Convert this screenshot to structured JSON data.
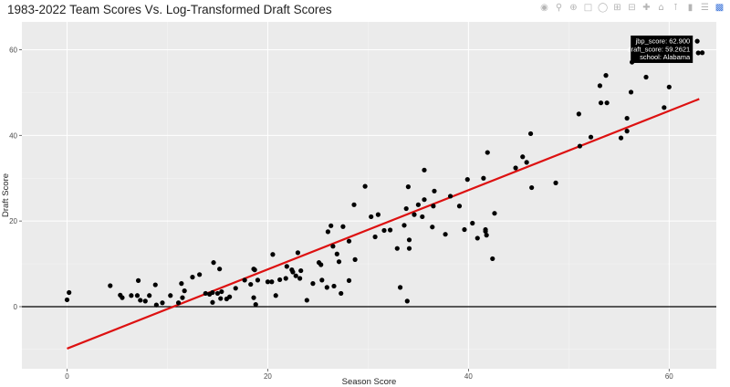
{
  "title": "1983-2022 Team Scores Vs. Log-Transformed Draft Scores",
  "modebar": {
    "icons": [
      "camera-icon",
      "zoom-icon",
      "plus-box-icon",
      "select-box-icon",
      "lasso-icon",
      "zoom-in-icon",
      "zoom-out-icon",
      "autoscale-icon",
      "home-icon",
      "spike-lines-icon",
      "hover-closest-icon",
      "hover-compare-icon",
      "plotly-logo-icon"
    ]
  },
  "colors": {
    "panel_bg": "#ebebeb",
    "grid": "#ffffff",
    "points": "#000000",
    "fit_line": "#dd1111",
    "hline": "#000000",
    "tooltip_bg": "#000000"
  },
  "tooltip": {
    "lines": [
      "jbp_score: 62.900",
      "draft_score: 59.2621",
      "school: Alabama"
    ],
    "point": [
      62.9,
      59.26
    ]
  },
  "chart_data": {
    "type": "scatter",
    "title": "1983-2022 Team Scores Vs. Log-Transformed Draft Scores",
    "xlabel": "Season Score",
    "ylabel": "Draft Score",
    "xlim": [
      -4.5,
      64.7
    ],
    "ylim": [
      -14.5,
      66.5
    ],
    "x_ticks": [
      0,
      20,
      40,
      60
    ],
    "y_ticks": [
      0,
      20,
      40,
      60
    ],
    "grid": true,
    "hline_y": 0,
    "fit_line": {
      "x": [
        0,
        63
      ],
      "y": [
        -9.8,
        48.5
      ]
    },
    "points": [
      [
        0,
        1.6
      ],
      [
        0.2,
        3.3
      ],
      [
        4.3,
        4.9
      ],
      [
        5.3,
        2.7
      ],
      [
        5.5,
        2.1
      ],
      [
        6.4,
        2.6
      ],
      [
        7,
        2.6
      ],
      [
        7.1,
        6.1
      ],
      [
        7.3,
        1.5
      ],
      [
        7.8,
        1.3
      ],
      [
        8.2,
        2.6
      ],
      [
        8.8,
        5.1
      ],
      [
        8.9,
        0.4
      ],
      [
        9.5,
        0.9
      ],
      [
        10.3,
        2.6
      ],
      [
        11.1,
        0.9
      ],
      [
        11.5,
        2.1
      ],
      [
        11.4,
        5.4
      ],
      [
        11.7,
        3.7
      ],
      [
        12.5,
        6.9
      ],
      [
        13.2,
        7.5
      ],
      [
        13.8,
        3.1
      ],
      [
        14.2,
        2.9
      ],
      [
        14.5,
        1
      ],
      [
        14.6,
        10.3
      ],
      [
        14.5,
        3.3
      ],
      [
        15,
        3.1
      ],
      [
        15.2,
        8.8
      ],
      [
        15.3,
        1.9
      ],
      [
        15.4,
        3.5
      ],
      [
        15.9,
        1.8
      ],
      [
        16.2,
        2.3
      ],
      [
        16.8,
        4.3
      ],
      [
        17.7,
        6.2
      ],
      [
        18.3,
        5.2
      ],
      [
        18.6,
        8.8
      ],
      [
        18.6,
        2.1
      ],
      [
        18.7,
        8.6
      ],
      [
        18.8,
        0.5
      ],
      [
        19,
        6.2
      ],
      [
        20,
        5.8
      ],
      [
        20.4,
        5.8
      ],
      [
        20.5,
        12.2
      ],
      [
        20.8,
        2.6
      ],
      [
        21.2,
        6.3
      ],
      [
        21.8,
        6.6
      ],
      [
        21.9,
        9.4
      ],
      [
        22.4,
        8.6
      ],
      [
        22.5,
        8.1
      ],
      [
        22.8,
        7.2
      ],
      [
        23,
        12.6
      ],
      [
        23.2,
        6.6
      ],
      [
        23.3,
        8.4
      ],
      [
        23.9,
        1.5
      ],
      [
        24.5,
        5.4
      ],
      [
        25.1,
        10.3
      ],
      [
        25.3,
        9.8
      ],
      [
        25.4,
        6.2
      ],
      [
        25.9,
        4.5
      ],
      [
        26,
        17.5
      ],
      [
        26.3,
        18.9
      ],
      [
        26.5,
        14.1
      ],
      [
        26.6,
        4.8
      ],
      [
        26.9,
        12.3
      ],
      [
        27.1,
        10.5
      ],
      [
        27.3,
        3.1
      ],
      [
        27.5,
        18.7
      ],
      [
        28.1,
        15.3
      ],
      [
        28.1,
        6.1
      ],
      [
        28.6,
        23.8
      ],
      [
        28.7,
        11
      ],
      [
        29.7,
        28.1
      ],
      [
        30.3,
        21
      ],
      [
        30.7,
        16.3
      ],
      [
        31,
        21.5
      ],
      [
        31.6,
        17.8
      ],
      [
        32.2,
        17.9
      ],
      [
        32.9,
        13.6
      ],
      [
        33.2,
        4.5
      ],
      [
        33.6,
        19
      ],
      [
        33.8,
        22.9
      ],
      [
        33.9,
        1.3
      ],
      [
        34,
        28
      ],
      [
        34.1,
        15.6
      ],
      [
        34.1,
        13.6
      ],
      [
        34.6,
        21.5
      ],
      [
        35,
        23.8
      ],
      [
        35.4,
        21
      ],
      [
        35.6,
        31.9
      ],
      [
        35.6,
        25
      ],
      [
        36.4,
        18.6
      ],
      [
        36.6,
        27
      ],
      [
        36.5,
        23.5
      ],
      [
        37.7,
        16.9
      ],
      [
        38.2,
        25.8
      ],
      [
        39.1,
        23.5
      ],
      [
        39.6,
        18
      ],
      [
        39.9,
        29.7
      ],
      [
        40.4,
        19.5
      ],
      [
        40.9,
        16
      ],
      [
        41.5,
        30
      ],
      [
        41.7,
        18
      ],
      [
        41.7,
        17.6
      ],
      [
        41.8,
        16.7
      ],
      [
        41.9,
        36
      ],
      [
        42.4,
        11.2
      ],
      [
        42.6,
        21.8
      ],
      [
        44.7,
        32.4
      ],
      [
        45.4,
        35
      ],
      [
        45.8,
        33.7
      ],
      [
        46.2,
        40.4
      ],
      [
        46.3,
        27.8
      ],
      [
        48.7,
        28.9
      ],
      [
        51,
        45
      ],
      [
        51.1,
        37.5
      ],
      [
        52.2,
        39.6
      ],
      [
        53.2,
        47.6
      ],
      [
        53.1,
        51.6
      ],
      [
        53.7,
        54
      ],
      [
        53.8,
        47.6
      ],
      [
        55.2,
        39.4
      ],
      [
        55.8,
        44
      ],
      [
        56.2,
        50.1
      ],
      [
        56.3,
        57.1
      ],
      [
        55.8,
        41
      ],
      [
        57.7,
        53.6
      ],
      [
        59.5,
        46.5
      ],
      [
        60,
        51.3
      ],
      [
        62.8,
        62
      ],
      [
        62.9,
        59.26
      ],
      [
        63.3,
        59.3
      ]
    ]
  }
}
